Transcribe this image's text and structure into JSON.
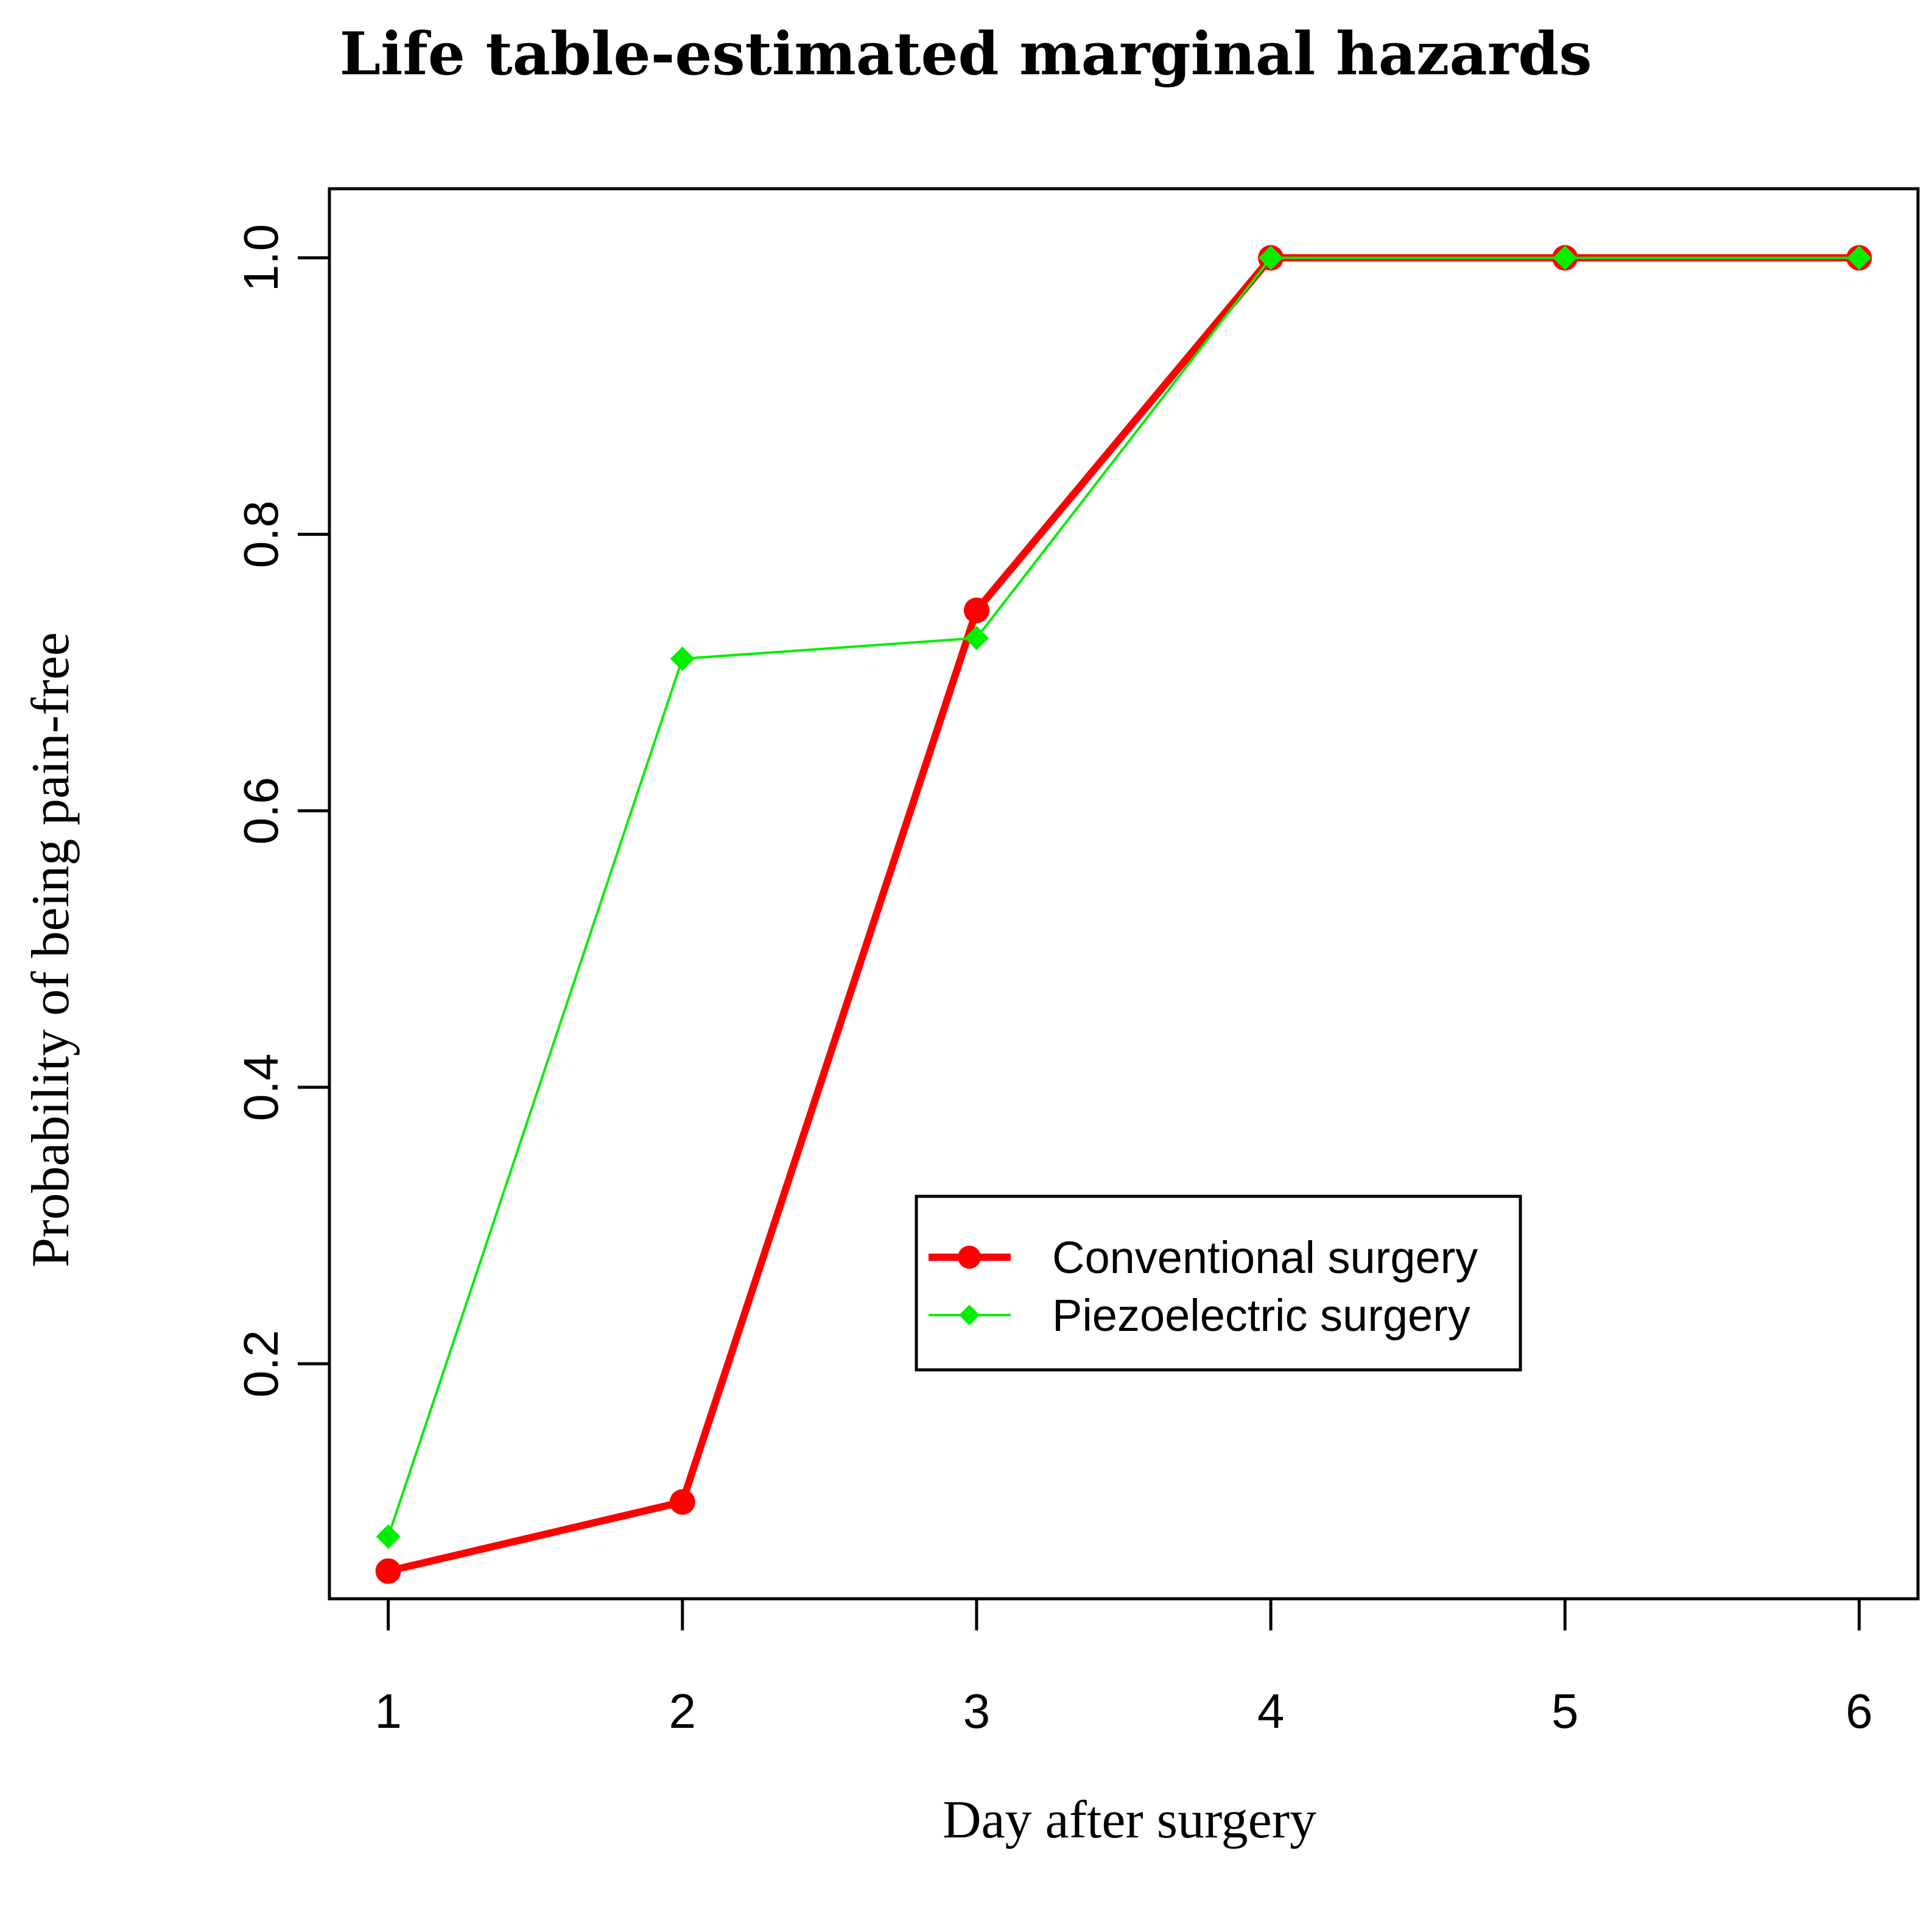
{
  "chart_data": {
    "type": "line",
    "title": "Life table-estimated marginal hazards",
    "xlabel": "Day after surgery",
    "ylabel": "Probability of being pain-free",
    "x": [
      1,
      2,
      3,
      4,
      5,
      6
    ],
    "xlim": [
      0.8,
      6.2
    ],
    "ylim": [
      0.03,
      1.05
    ],
    "xticks": [
      1,
      2,
      3,
      4,
      5,
      6
    ],
    "yticks": [
      0.2,
      0.4,
      0.6,
      0.8,
      1.0
    ],
    "ytick_labels": [
      "0.2",
      "0.4",
      "0.6",
      "0.8",
      "1.0"
    ],
    "grid": false,
    "legend_position": "lower-right (inside plot)",
    "series": [
      {
        "name": "Conventional surgery",
        "color": "#ff0000",
        "marker": "circle",
        "values": [
          0.05,
          0.1,
          0.745,
          1.0,
          1.0,
          1.0
        ]
      },
      {
        "name": "Piezoelectric surgery",
        "color": "#00ee00",
        "marker": "diamond",
        "values": [
          0.075,
          0.71,
          0.725,
          1.0,
          1.0,
          1.0
        ]
      }
    ]
  }
}
